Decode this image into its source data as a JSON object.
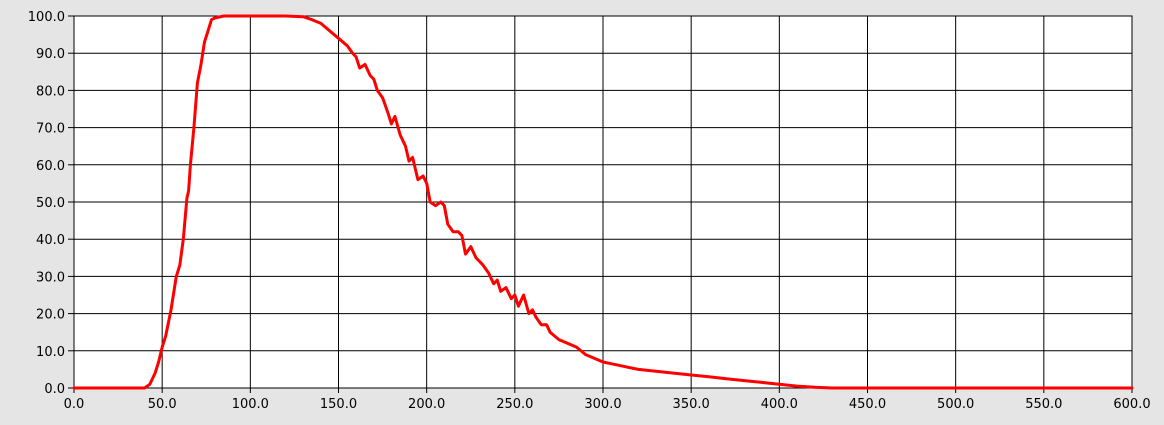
{
  "chart_data": {
    "type": "line",
    "title": "",
    "xlabel": "",
    "ylabel": "",
    "xlim": [
      0,
      600
    ],
    "ylim": [
      0,
      100
    ],
    "grid": true,
    "x_ticks": [
      "0.0",
      "50.0",
      "100.0",
      "150.0",
      "200.0",
      "250.0",
      "300.0",
      "350.0",
      "400.0",
      "450.0",
      "500.0",
      "550.0",
      "600.0"
    ],
    "y_ticks": [
      "0.0",
      "10.0",
      "20.0",
      "30.0",
      "40.0",
      "50.0",
      "60.0",
      "70.0",
      "80.0",
      "90.0",
      "100.0"
    ],
    "series": [
      {
        "color": "#ff0000",
        "x": [
          0,
          40,
          43,
          46,
          48,
          50,
          52,
          55,
          58,
          60,
          62,
          64,
          65,
          66,
          68,
          70,
          72,
          74,
          76,
          78,
          80,
          85,
          90,
          100,
          110,
          120,
          130,
          135,
          140,
          145,
          150,
          155,
          158,
          160,
          162,
          165,
          168,
          170,
          172,
          175,
          178,
          180,
          182,
          185,
          188,
          190,
          192,
          195,
          198,
          200,
          202,
          205,
          208,
          210,
          212,
          215,
          218,
          220,
          222,
          225,
          228,
          230,
          232,
          235,
          238,
          240,
          242,
          245,
          248,
          250,
          252,
          255,
          258,
          260,
          262,
          265,
          268,
          270,
          275,
          280,
          285,
          290,
          295,
          300,
          305,
          310,
          320,
          330,
          340,
          350,
          360,
          370,
          380,
          390,
          400,
          410,
          420,
          430,
          450,
          500,
          550,
          600
        ],
        "y": [
          0,
          0,
          1,
          4,
          7,
          11,
          14,
          21,
          30,
          33,
          40,
          51,
          53,
          60,
          70,
          82,
          87,
          93,
          96,
          99,
          99.5,
          100,
          100,
          100,
          100,
          100,
          99.8,
          99,
          98,
          96,
          94,
          92,
          90,
          89,
          86,
          87,
          84,
          83,
          80,
          78,
          74,
          71,
          73,
          68,
          65,
          61,
          62,
          56,
          57,
          55,
          50,
          49,
          50,
          49,
          44,
          42,
          42,
          41,
          36,
          38,
          35,
          34,
          33,
          31,
          28,
          29,
          26,
          27,
          24,
          25,
          22,
          25,
          20,
          21,
          19,
          17,
          17,
          15,
          13,
          12,
          11,
          9,
          8,
          7,
          6.5,
          6,
          5,
          4.5,
          4,
          3.5,
          3,
          2.5,
          2,
          1.5,
          1,
          0.5,
          0.2,
          0,
          0,
          0,
          0,
          0
        ]
      }
    ]
  }
}
